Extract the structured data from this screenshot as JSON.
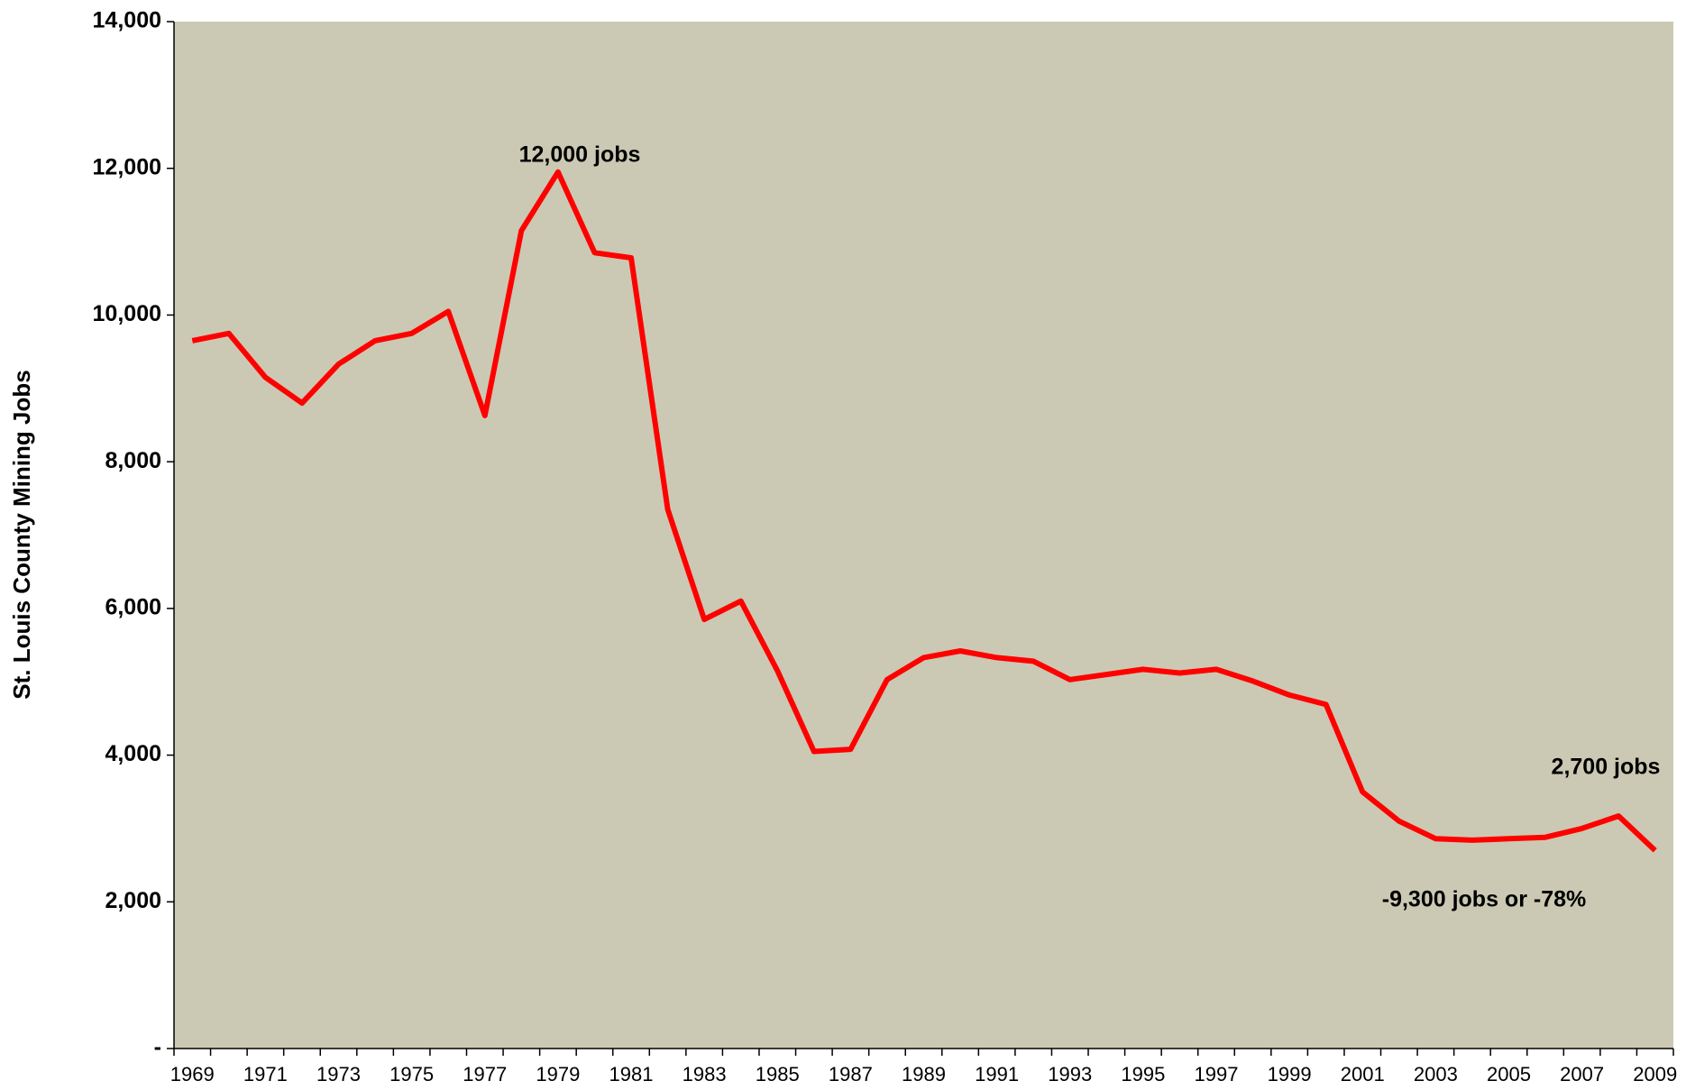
{
  "chart_data": {
    "type": "line",
    "y_label": "St. Louis County Mining Jobs",
    "categories": [
      "1969",
      null,
      "1971",
      null,
      "1973",
      null,
      "1975",
      null,
      "1977",
      null,
      "1979",
      null,
      "1981",
      null,
      "1983",
      null,
      "1985",
      null,
      "1987",
      null,
      "1989",
      null,
      "1991",
      null,
      "1993",
      null,
      "1995",
      null,
      "1997",
      null,
      "1999",
      null,
      "2001",
      null,
      "2003",
      null,
      "2005",
      null,
      "2007",
      null,
      "2009"
    ],
    "series": [
      {
        "name": "St. Louis County Mining Jobs",
        "color": "#ff0000",
        "values": [
          9650,
          9750,
          9150,
          8800,
          9330,
          9650,
          9750,
          10050,
          8630,
          11150,
          11950,
          10850,
          10780,
          7350,
          5850,
          6100,
          5150,
          4050,
          4080,
          5030,
          5330,
          5420,
          5330,
          5280,
          5030,
          5100,
          5170,
          5120,
          5170,
          5010,
          4820,
          4690,
          3500,
          3100,
          2860,
          2840,
          2860,
          2880,
          3000,
          3170,
          2700
        ]
      }
    ],
    "ylim": [
      0,
      14000
    ],
    "yticks": [
      {
        "value": 0,
        "label": "-"
      },
      {
        "value": 2000,
        "label": "2,000"
      },
      {
        "value": 4000,
        "label": "4,000"
      },
      {
        "value": 6000,
        "label": "6,000"
      },
      {
        "value": 8000,
        "label": "8,000"
      },
      {
        "value": 10000,
        "label": "10,000"
      },
      {
        "value": 12000,
        "label": "12,000"
      },
      {
        "value": 14000,
        "label": "14,000"
      }
    ],
    "grid": false,
    "plot_background": "#cbc9b3",
    "annotations": [
      "12,000 jobs",
      "2,700 jobs",
      "-9,300 jobs or -78%"
    ]
  }
}
